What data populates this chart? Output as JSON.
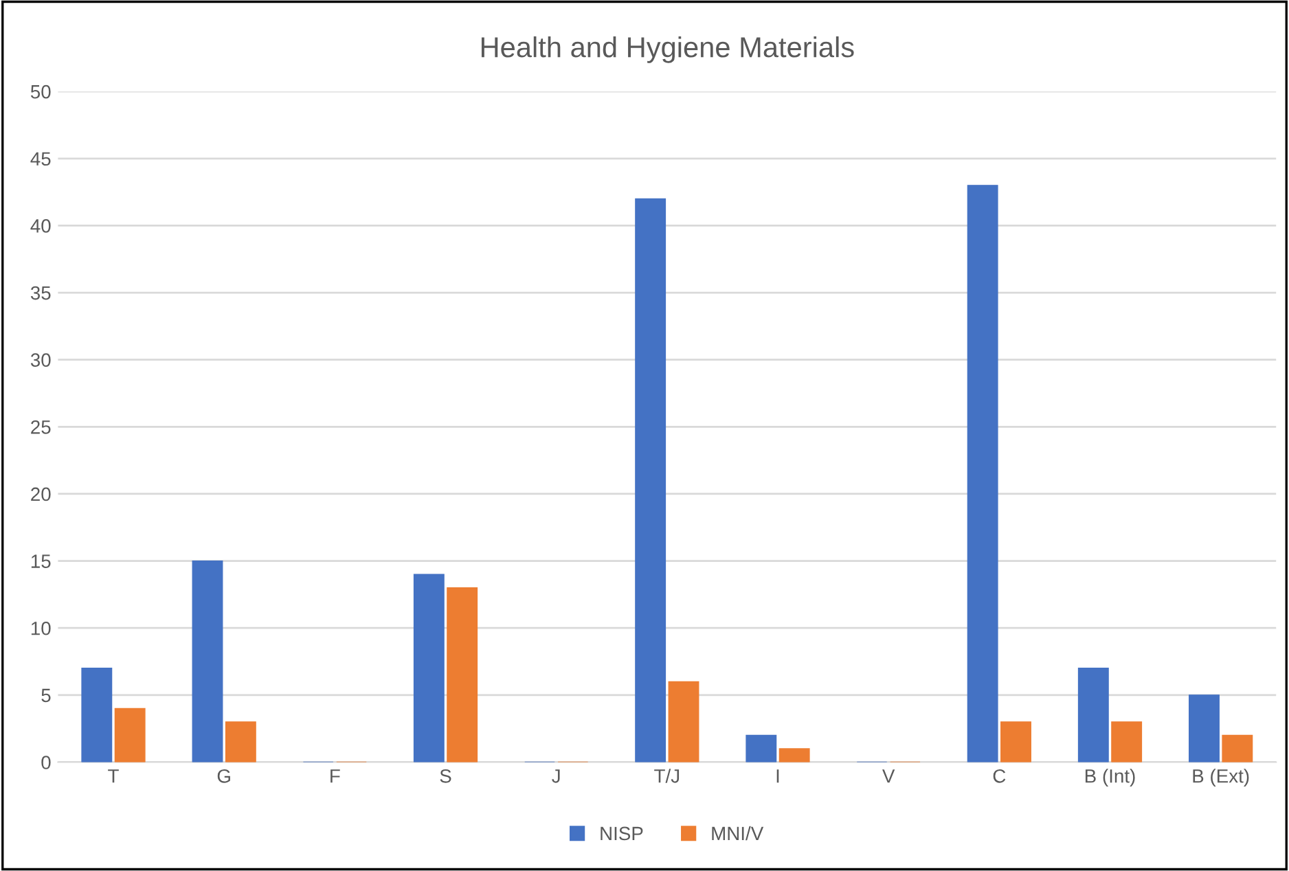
{
  "chart_data": {
    "type": "bar",
    "title": "Health and Hygiene Materials",
    "categories": [
      "T",
      "G",
      "F",
      "S",
      "J",
      "T/J",
      "I",
      "V",
      "C",
      "B (Int)",
      "B (Ext)"
    ],
    "series": [
      {
        "name": "NISP",
        "color": "#4472c4",
        "values": [
          7,
          15,
          0,
          14,
          0,
          42,
          2,
          0,
          43,
          7,
          5
        ]
      },
      {
        "name": "MNI/V",
        "color": "#ed7d31",
        "values": [
          4,
          3,
          0,
          13,
          0,
          6,
          1,
          0,
          3,
          3,
          2
        ]
      }
    ],
    "ylim": [
      0,
      50
    ],
    "yticks": [
      0,
      5,
      10,
      15,
      20,
      25,
      30,
      35,
      40,
      45,
      50
    ],
    "grid": "y",
    "legend": "bottom"
  }
}
